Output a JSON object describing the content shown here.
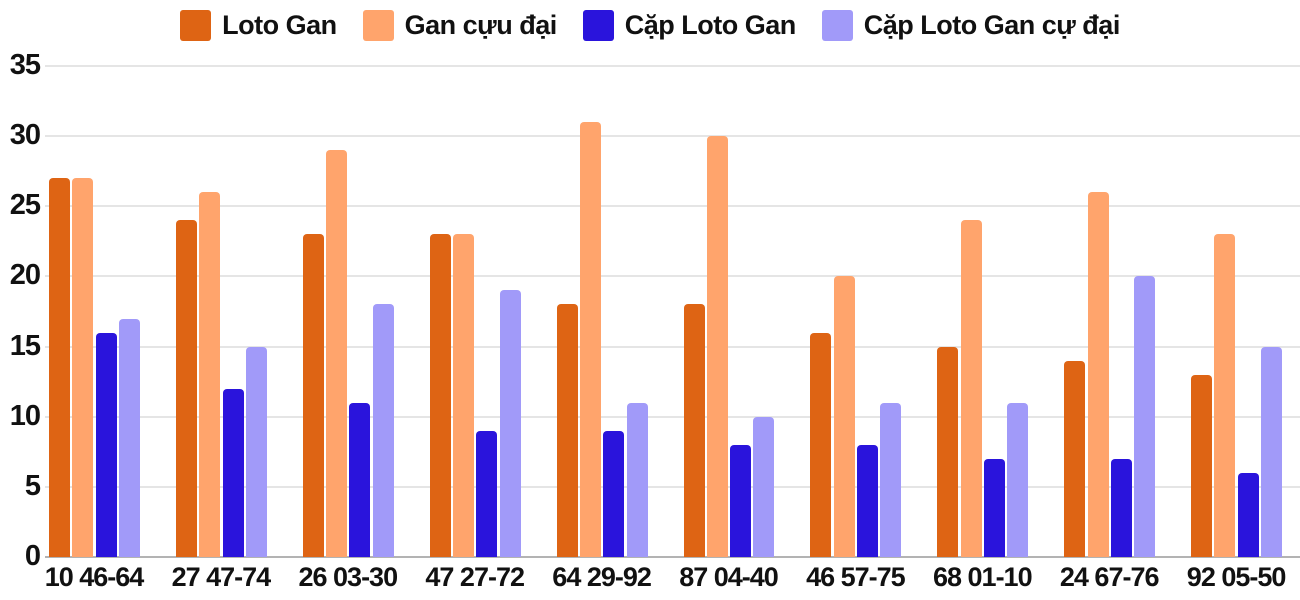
{
  "chart_data": {
    "type": "bar",
    "title": "",
    "xlabel": "",
    "ylabel": "",
    "ylim": [
      0,
      35
    ],
    "yticks": [
      0,
      5,
      10,
      15,
      20,
      25,
      30,
      35
    ],
    "grid": "horizontal",
    "legend_position": "top",
    "categories": [
      "10 46-64",
      "27 47-74",
      "26 03-30",
      "47 27-72",
      "64 29-92",
      "87 04-40",
      "46 57-75",
      "68 01-10",
      "24 67-76",
      "92 05-50"
    ],
    "series": [
      {
        "name": "Loto Gan",
        "color": "#de6414",
        "values": [
          27,
          24,
          23,
          23,
          18,
          18,
          16,
          15,
          14,
          13
        ]
      },
      {
        "name": "Gan cựu đại",
        "color": "#ffa46c",
        "values": [
          27,
          26,
          29,
          23,
          31,
          30,
          20,
          24,
          26,
          23
        ]
      },
      {
        "name": "Cặp Loto Gan",
        "color": "#2a14dc",
        "values": [
          16,
          12,
          11,
          9,
          9,
          8,
          8,
          7,
          7,
          6
        ]
      },
      {
        "name": "Cặp Loto Gan cự đại",
        "color": "#a19af9",
        "values": [
          17,
          15,
          18,
          19,
          11,
          10,
          11,
          11,
          20,
          15
        ]
      }
    ]
  },
  "colors": {
    "grid": "#e5e5e5",
    "axis": "#b3b3b3",
    "text": "#111111",
    "background": "#ffffff"
  }
}
